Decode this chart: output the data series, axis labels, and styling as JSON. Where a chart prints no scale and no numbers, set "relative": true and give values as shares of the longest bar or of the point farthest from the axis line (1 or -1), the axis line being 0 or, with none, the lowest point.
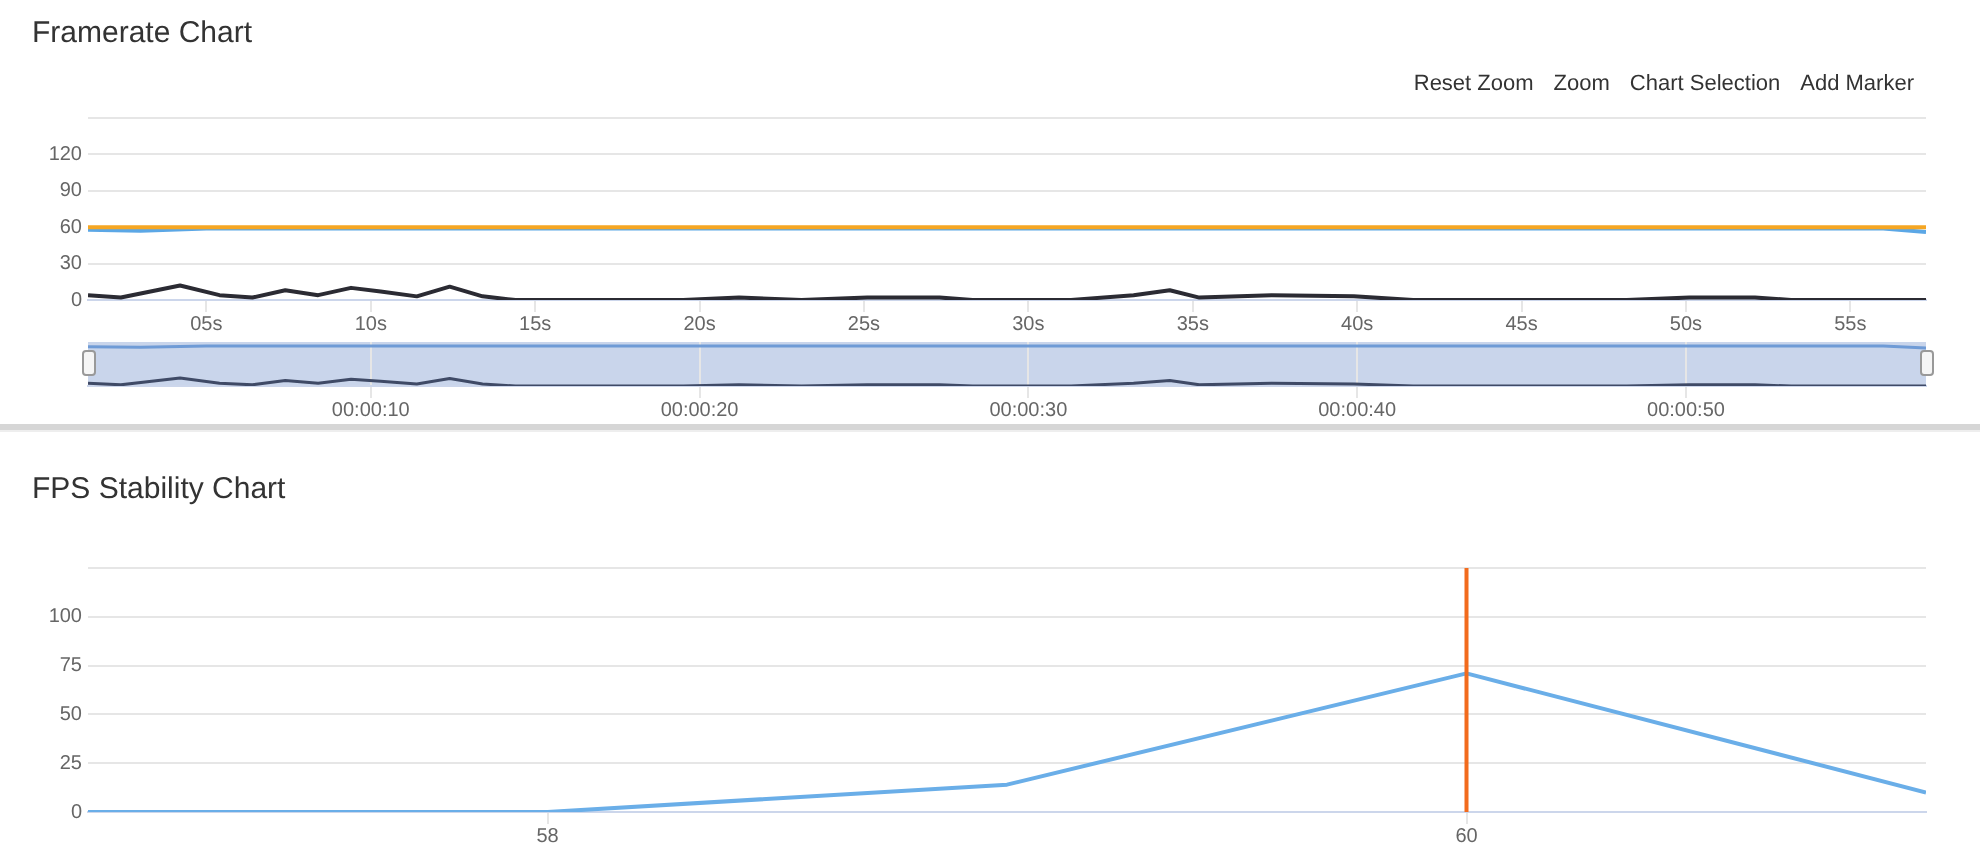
{
  "chart_data": [
    {
      "type": "line",
      "title": "Framerate Chart",
      "annotations": [
        "Reset Zoom",
        "Zoom",
        "Chart Selection",
        "Add Marker"
      ],
      "xlim": [
        1.4,
        57.3
      ],
      "xticks": [
        {
          "value": 5,
          "label": "05s"
        },
        {
          "value": 10,
          "label": "10s"
        },
        {
          "value": 15,
          "label": "15s"
        },
        {
          "value": 20,
          "label": "20s"
        },
        {
          "value": 25,
          "label": "25s"
        },
        {
          "value": 30,
          "label": "30s"
        },
        {
          "value": 35,
          "label": "35s"
        },
        {
          "value": 40,
          "label": "40s"
        },
        {
          "value": 45,
          "label": "45s"
        },
        {
          "value": 50,
          "label": "50s"
        },
        {
          "value": 55,
          "label": "55s"
        }
      ],
      "ylim": [
        0,
        150
      ],
      "yticks": [
        0,
        30,
        60,
        90,
        120,
        {
          "value": 150,
          "label": null
        }
      ],
      "grid": "y",
      "legend": false,
      "marker": "none",
      "line_style": "solid",
      "series": [
        {
          "color": "#f5a623",
          "x": [
            1.4,
            57.3
          ],
          "values": [
            60,
            60
          ]
        },
        {
          "color": "#5ba7e6",
          "x": [
            1.4,
            3,
            5,
            10,
            20,
            30,
            40,
            50,
            56,
            57.3
          ],
          "values": [
            58,
            57,
            59,
            59,
            59,
            59,
            59,
            59,
            59,
            56
          ]
        },
        {
          "color": "#2b2b33",
          "x": [
            1.4,
            2.4,
            4.2,
            5.4,
            6.4,
            7.4,
            8.4,
            9.4,
            10.3,
            11.4,
            12.4,
            13.4,
            14.4,
            19.5,
            21.2,
            23.1,
            25.1,
            27.3,
            28.3,
            31.3,
            33.2,
            34.3,
            35.2,
            37.4,
            39.9,
            41.7,
            48.2,
            50.1,
            52.1,
            53.2,
            57.3
          ],
          "values": [
            4,
            2,
            12,
            4,
            2,
            8,
            4,
            10,
            7,
            3,
            11,
            3,
            0,
            0,
            2,
            0,
            2,
            2,
            0,
            0,
            4,
            8,
            2,
            4,
            3,
            0,
            0,
            2,
            2,
            0,
            0
          ]
        }
      ]
    },
    {
      "type": "line",
      "xlim": [
        1.4,
        57.3
      ],
      "xticks": [
        {
          "value": 10,
          "label": "00:00:10"
        },
        {
          "value": 20,
          "label": "00:00:20"
        },
        {
          "value": 30,
          "label": "00:00:30"
        },
        {
          "value": 40,
          "label": "00:00:40"
        },
        {
          "value": 50,
          "label": "00:00:50"
        }
      ],
      "relative": true,
      "tick_labels": "x",
      "grid": "x",
      "legend": false,
      "marker": "none",
      "bands": [
        {
          "axis": "x",
          "from": 1.4,
          "to": 57.3,
          "color": "#c9d5eb"
        }
      ],
      "series": [
        {
          "color": "#6f9bd6",
          "x": [
            1.4,
            3,
            5,
            10,
            20,
            30,
            40,
            50,
            56,
            57.3
          ],
          "values": [
            0.98,
            0.97,
            1,
            1,
            1,
            1,
            1,
            1,
            1,
            0.95
          ]
        },
        {
          "color": "#3f4a66",
          "x": [
            1.4,
            2.4,
            4.2,
            5.4,
            6.4,
            7.4,
            8.4,
            9.4,
            10.3,
            11.4,
            12.4,
            13.4,
            14.4,
            19.5,
            21.2,
            23.1,
            25.1,
            27.3,
            28.3,
            31.3,
            33.2,
            34.3,
            35.2,
            37.4,
            39.9,
            41.7,
            48.2,
            50.1,
            52.1,
            53.2,
            57.3
          ],
          "values": [
            0.07,
            0.03,
            0.2,
            0.07,
            0.03,
            0.14,
            0.07,
            0.17,
            0.12,
            0.05,
            0.19,
            0.05,
            0,
            0,
            0.03,
            0,
            0.03,
            0.03,
            0,
            0,
            0.07,
            0.14,
            0.03,
            0.07,
            0.05,
            0,
            0,
            0.03,
            0.03,
            0,
            0
          ]
        }
      ]
    },
    {
      "type": "line",
      "title": "FPS Stability Chart",
      "xlim": [
        57,
        61
      ],
      "xticks": [
        58,
        60
      ],
      "ylim": [
        0,
        125
      ],
      "yticks": [
        0,
        25,
        50,
        75,
        100,
        {
          "value": 125,
          "label": null
        }
      ],
      "grid": "y",
      "legend": false,
      "marker": "none",
      "ref_lines": [
        {
          "axis": "x",
          "value": 60,
          "color": "#f26b1d"
        }
      ],
      "series": [
        {
          "color": "#6aaee8",
          "x": [
            57,
            58,
            59,
            60,
            61
          ],
          "values": [
            0,
            0,
            14,
            71,
            10
          ]
        }
      ]
    }
  ]
}
